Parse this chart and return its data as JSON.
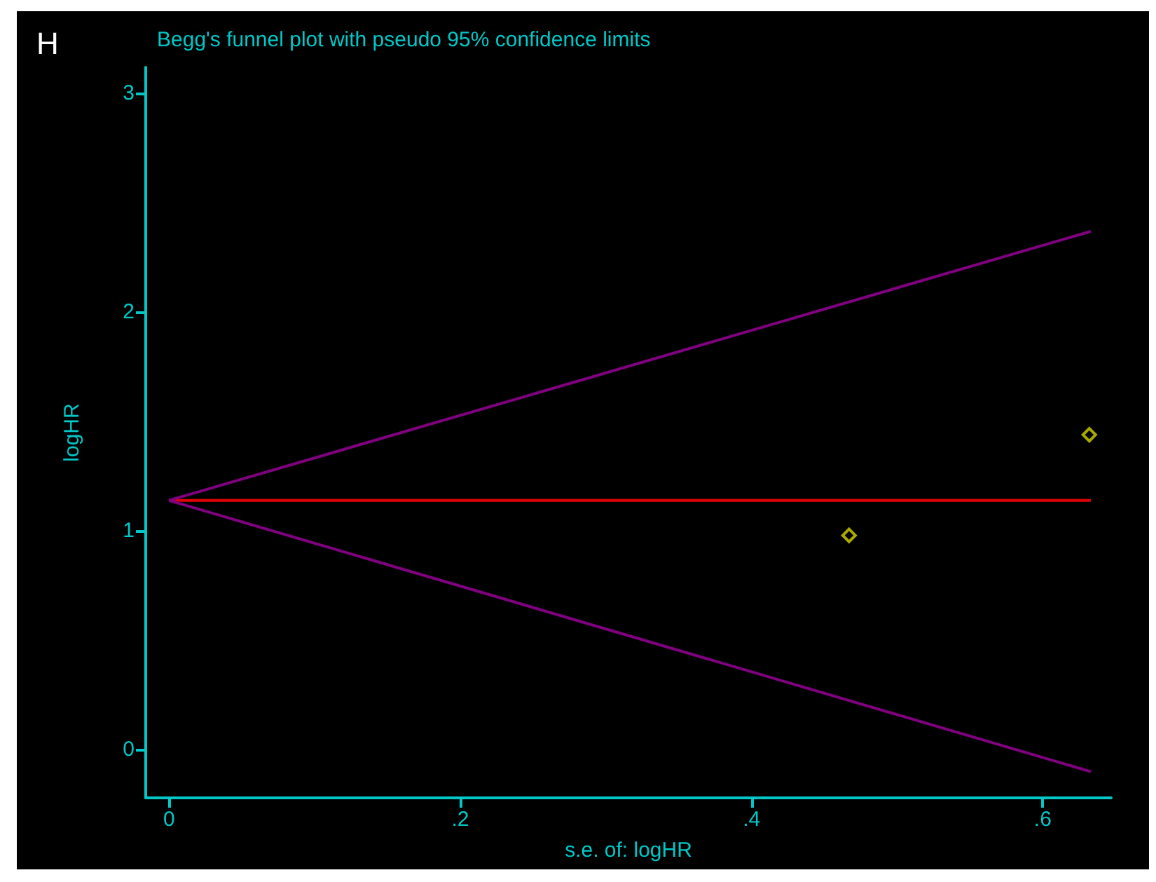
{
  "chart_data": {
    "type": "scatter",
    "title": "Begg's funnel plot with pseudo 95% confidence limits",
    "xlabel": "s.e. of: logHR",
    "ylabel": "logHR",
    "annotations": [
      "H"
    ],
    "xlim": [
      -0.016,
      0.647
    ],
    "xticks": [
      0,
      {
        "value": 0.2,
        "label": ".2"
      },
      {
        "value": 0.4,
        "label": ".4"
      },
      {
        "value": 0.6,
        "label": ".6"
      }
    ],
    "ylim": [
      -0.22,
      3.12
    ],
    "yticks": [
      0,
      1,
      2,
      3
    ],
    "grid": false,
    "series": [
      {
        "x": [
          0.467,
          0.632
        ],
        "values": [
          0.98,
          1.44
        ],
        "color": "#d4d400",
        "marker": "diamond"
      },
      {
        "type": "line",
        "x": [
          0,
          0.633
        ],
        "values": [
          1.14,
          1.14
        ],
        "color": "#e00000"
      },
      {
        "type": "line",
        "x": [
          0,
          0.633
        ],
        "values": [
          1.14,
          2.37
        ],
        "color": "#800080"
      },
      {
        "type": "line",
        "x": [
          0,
          0.633
        ],
        "values": [
          1.14,
          -0.1
        ],
        "color": "#800080"
      }
    ]
  }
}
